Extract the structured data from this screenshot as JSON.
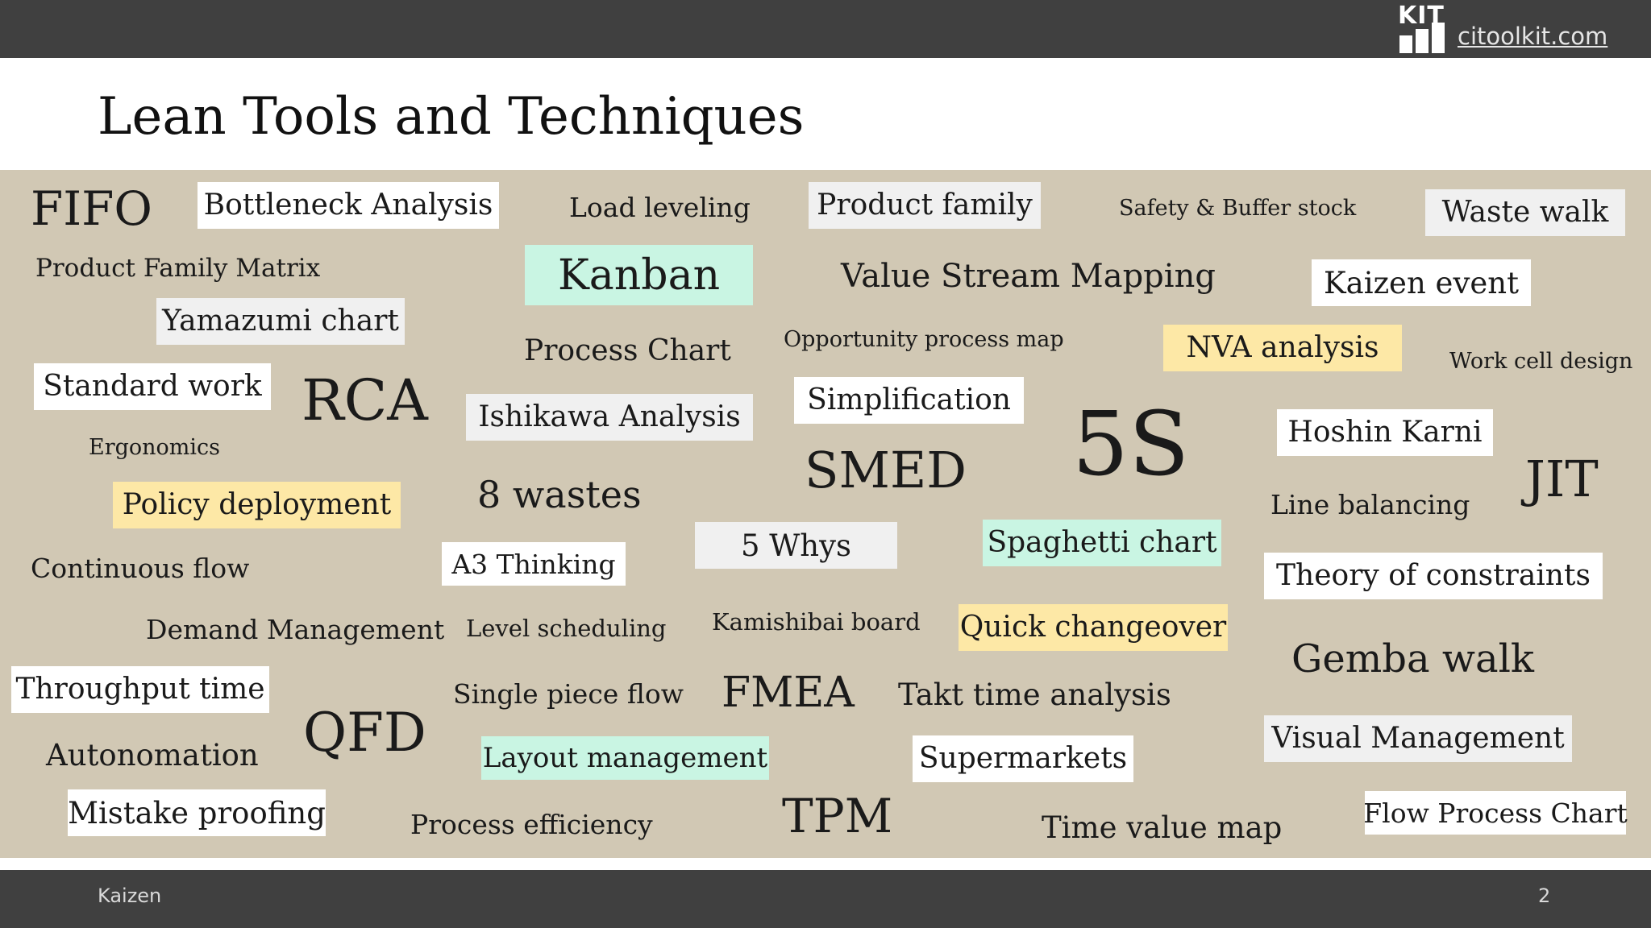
{
  "header": {
    "logo_text": "KIT",
    "site_link": "citoolkit.com"
  },
  "title": "Lean Tools and Techniques",
  "terms": {
    "fifo": "FIFO",
    "bottleneck": "Bottleneck Analysis",
    "load_leveling": "Load leveling",
    "product_family": "Product family",
    "safety_buffer": "Safety & Buffer stock",
    "waste_walk": "Waste walk",
    "pfm": "Product Family Matrix",
    "kanban": "Kanban",
    "vsm": "Value Stream Mapping",
    "kaizen_event": "Kaizen event",
    "yamazumi": "Yamazumi chart",
    "process_chart": "Process Chart",
    "opp_map": "Opportunity process map",
    "nva": "NVA analysis",
    "work_cell": "Work cell design",
    "standard_work": "Standard work",
    "rca": "RCA",
    "ishikawa": "Ishikawa Analysis",
    "simplification": "Simplification",
    "five_s": "5S",
    "hoshin": "Hoshin Karni",
    "ergonomics": "Ergonomics",
    "smed": "SMED",
    "jit": "JIT",
    "policy": "Policy deployment",
    "eight_wastes": "8 wastes",
    "line_balancing": "Line balancing",
    "five_whys": "5 Whys",
    "spaghetti": "Spaghetti chart",
    "continuous_flow": "Continuous flow",
    "a3": "A3 Thinking",
    "toc": "Theory of constraints",
    "demand": "Demand Management",
    "level_sched": "Level scheduling",
    "kamishibai": "Kamishibai board",
    "quick_change": "Quick changeover",
    "gemba": "Gemba walk",
    "throughput": "Throughput time",
    "single_piece": "Single piece flow",
    "fmea": "FMEA",
    "takt": "Takt time analysis",
    "qfd": "QFD",
    "autonomation": "Autonomation",
    "layout_mgmt": "Layout management",
    "supermarkets": "Supermarkets",
    "visual_mgmt": "Visual Management",
    "mistake_proofing": "Mistake proofing",
    "process_eff": "Process efficiency",
    "tpm": "TPM",
    "time_value": "Time value map",
    "flow_process": "Flow Process Chart"
  },
  "footer": {
    "left": "Kaizen",
    "page_number": "2"
  },
  "colors": {
    "bar": "#404040",
    "board": "#d1c8b4",
    "mint": "#c9f5e3",
    "yellow": "#fde8a6",
    "grey": "#f0f0f0"
  }
}
